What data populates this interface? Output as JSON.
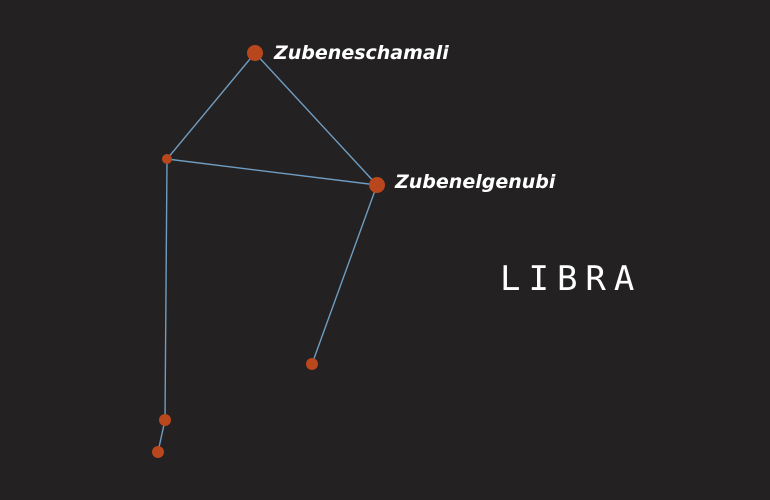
{
  "constellation": {
    "name": "LIBRA",
    "line_color": "#6f9cc0",
    "star_color": "#b9471e",
    "background_color": "#232122",
    "stars": [
      {
        "id": "zubeneschamali",
        "label": "Zubeneschamali",
        "magnitude": "major"
      },
      {
        "id": "sigma-upper",
        "label": "",
        "magnitude": "minor"
      },
      {
        "id": "zubenelgenubi",
        "label": "Zubenelgenubi",
        "magnitude": "major"
      },
      {
        "id": "upsilon",
        "label": "",
        "magnitude": "minor"
      },
      {
        "id": "tau-lower",
        "label": "",
        "magnitude": "minor"
      },
      {
        "id": "bottom",
        "label": "",
        "magnitude": "minor"
      }
    ],
    "connections": [
      [
        "zubeneschamali",
        "sigma-upper"
      ],
      [
        "zubeneschamali",
        "zubenelgenubi"
      ],
      [
        "sigma-upper",
        "zubenelgenubi"
      ],
      [
        "zubenelgenubi",
        "upsilon"
      ],
      [
        "sigma-upper",
        "tau-lower"
      ],
      [
        "tau-lower",
        "bottom"
      ]
    ]
  }
}
